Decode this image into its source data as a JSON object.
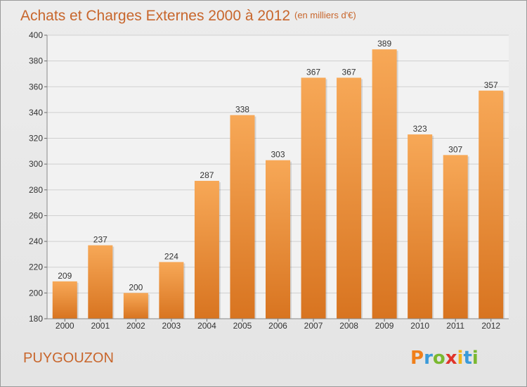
{
  "chart_data": {
    "type": "bar",
    "title": "Achats et Charges Externes 2000 à 2012",
    "subtitle": "(en milliers d'€)",
    "categories": [
      "2000",
      "2001",
      "2002",
      "2003",
      "2004",
      "2005",
      "2006",
      "2007",
      "2008",
      "2009",
      "2010",
      "2011",
      "2012"
    ],
    "values": [
      209,
      237,
      200,
      224,
      287,
      338,
      303,
      367,
      367,
      389,
      323,
      307,
      357
    ],
    "xlabel": "",
    "ylabel": "",
    "ylim": [
      180,
      400
    ],
    "yticks": [
      180,
      200,
      220,
      240,
      260,
      280,
      300,
      320,
      340,
      360,
      380,
      400
    ],
    "grid": true,
    "bar_color": "#f0963f"
  },
  "footer": {
    "commune": "PUYGOUZON",
    "logo": "Proxiti",
    "logo_colors": [
      "#f07f1a",
      "#3a9ad9",
      "#7ab830",
      "#e0342a",
      "#f0b51a",
      "#3a9ad9",
      "#7ab830"
    ]
  }
}
